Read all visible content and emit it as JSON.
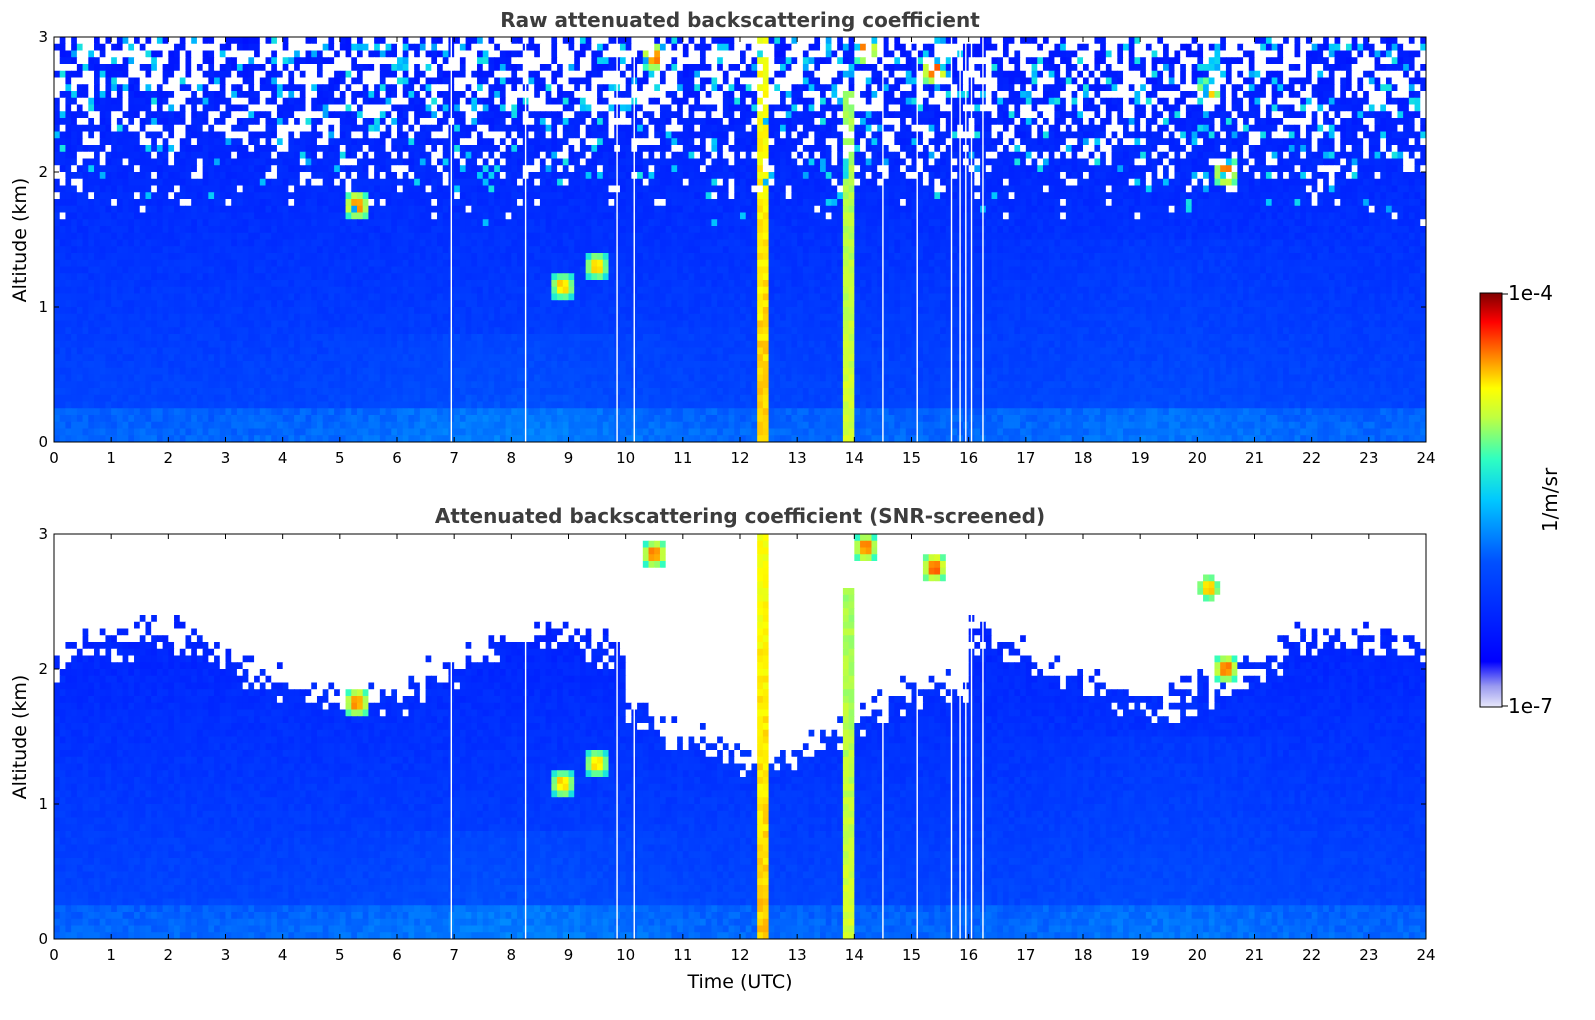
{
  "chart_data": [
    {
      "type": "heatmap",
      "title": "Raw attenuated backscattering coefficient",
      "xlabel": "",
      "ylabel": "Altitude (km)",
      "xlim": [
        0,
        24
      ],
      "ylim": [
        0,
        3
      ],
      "x_ticks": [
        "0",
        "1",
        "2",
        "3",
        "4",
        "5",
        "6",
        "7",
        "8",
        "9",
        "10",
        "11",
        "12",
        "13",
        "14",
        "15",
        "16",
        "17",
        "18",
        "19",
        "20",
        "21",
        "22",
        "23",
        "24"
      ],
      "y_ticks": [
        "0",
        "1",
        "2",
        "3"
      ],
      "noise_top_km": 2.3,
      "features": [
        {
          "name": "plume",
          "t": 12.4,
          "width": 0.25,
          "from": 0,
          "to": 3,
          "level": 0.75
        },
        {
          "name": "plume",
          "t": 13.9,
          "width": 0.2,
          "from": 0,
          "to": 2.6,
          "level": 0.72
        },
        {
          "name": "cloud",
          "t": 5.3,
          "alt": 1.75,
          "level": 0.95
        },
        {
          "name": "cloud",
          "t": 8.9,
          "alt": 1.15,
          "level": 0.9
        },
        {
          "name": "cloud",
          "t": 9.5,
          "alt": 1.3,
          "level": 0.9
        },
        {
          "name": "cloud",
          "t": 10.5,
          "alt": 2.85,
          "level": 0.95
        },
        {
          "name": "cloud",
          "t": 14.2,
          "alt": 2.9,
          "level": 0.95
        },
        {
          "name": "cloud",
          "t": 15.4,
          "alt": 2.75,
          "level": 0.97
        },
        {
          "name": "cloud",
          "t": 20.2,
          "alt": 2.6,
          "level": 0.9
        },
        {
          "name": "cloud",
          "t": 20.5,
          "alt": 2.0,
          "level": 0.95
        }
      ],
      "dropout_times": [
        6.95,
        8.25,
        9.85,
        10.15,
        14.5,
        15.1,
        15.7,
        15.85,
        15.95,
        16.05,
        16.25
      ]
    },
    {
      "type": "heatmap",
      "title": "Attenuated backscattering coefficient (SNR-screened)",
      "xlabel": "Time (UTC)",
      "ylabel": "Altitude (km)",
      "xlim": [
        0,
        24
      ],
      "ylim": [
        0,
        3
      ],
      "x_ticks": [
        "0",
        "1",
        "2",
        "3",
        "4",
        "5",
        "6",
        "7",
        "8",
        "9",
        "10",
        "11",
        "12",
        "13",
        "14",
        "15",
        "16",
        "17",
        "18",
        "19",
        "20",
        "21",
        "22",
        "23",
        "24"
      ],
      "y_ticks": [
        "0",
        "1",
        "2",
        "3"
      ],
      "snr_screen_top_km": 2.0
    }
  ],
  "colorbar": {
    "label": "1/m/sr",
    "max_label": "1e-4",
    "min_label": "1e-7",
    "colormap": [
      "#e8e8fa",
      "#00008f",
      "#0000ff",
      "#007fff",
      "#00ffff",
      "#7fff7f",
      "#ffff00",
      "#ff7f00",
      "#ff0000",
      "#7f0000"
    ]
  }
}
